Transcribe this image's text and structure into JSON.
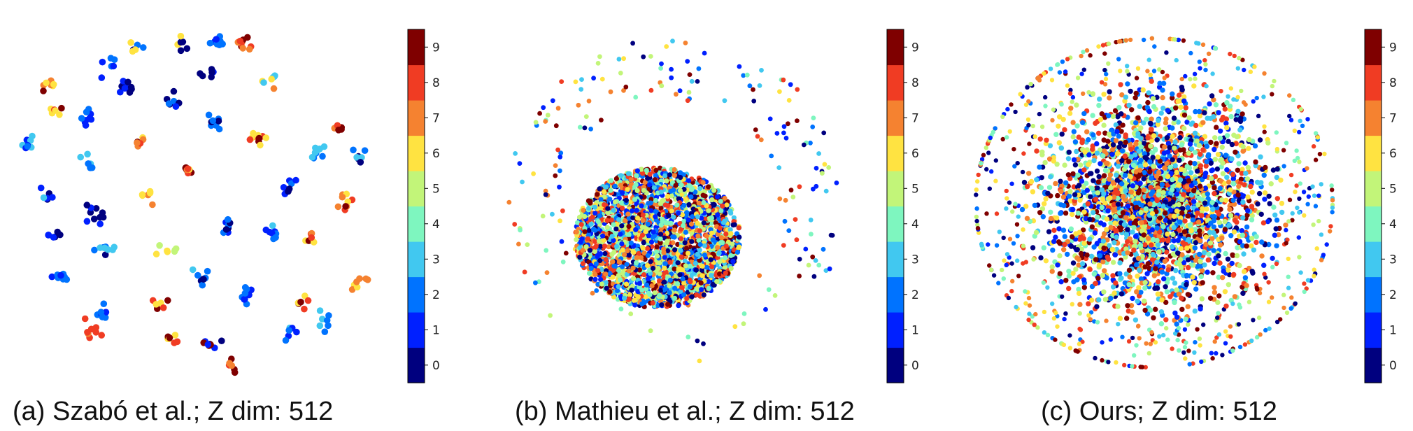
{
  "colormap": {
    "name": "jet",
    "class_colors": [
      "#00007f",
      "#0020ff",
      "#0073ff",
      "#41c8f0",
      "#7ef6bf",
      "#c2f579",
      "#ffe341",
      "#f58230",
      "#f03c23",
      "#7f0000"
    ]
  },
  "chart_data": [
    {
      "type": "scatter",
      "caption": "(a) Szabó et al.; Z dim: 512",
      "xlim": [
        -1,
        1
      ],
      "ylim": [
        -1,
        1
      ],
      "axes_visible": false,
      "colorbar": {
        "position": "right",
        "ticks": [
          0,
          1,
          2,
          3,
          4,
          5,
          6,
          7,
          8,
          9
        ]
      },
      "distribution": "clustered",
      "clusters": [
        {
          "x": -0.32,
          "y": 0.92,
          "classes": [
            0,
            6,
            2
          ]
        },
        {
          "x": -0.05,
          "y": 0.95,
          "classes": [
            8,
            6,
            0
          ]
        },
        {
          "x": 0.14,
          "y": 0.97,
          "classes": [
            1,
            2
          ]
        },
        {
          "x": 0.3,
          "y": 0.94,
          "classes": [
            7,
            8,
            9
          ]
        },
        {
          "x": -0.48,
          "y": 0.82,
          "classes": [
            1,
            2
          ]
        },
        {
          "x": -0.82,
          "y": 0.7,
          "classes": [
            6,
            7,
            9
          ]
        },
        {
          "x": -0.38,
          "y": 0.7,
          "classes": [
            0,
            1
          ]
        },
        {
          "x": 0.1,
          "y": 0.75,
          "classes": [
            0,
            1
          ]
        },
        {
          "x": 0.45,
          "y": 0.72,
          "classes": [
            7,
            6,
            3
          ]
        },
        {
          "x": -0.12,
          "y": 0.6,
          "classes": [
            2,
            0,
            1
          ]
        },
        {
          "x": -0.78,
          "y": 0.55,
          "classes": [
            6,
            8,
            9
          ]
        },
        {
          "x": -0.6,
          "y": 0.52,
          "classes": [
            1,
            2
          ]
        },
        {
          "x": 0.12,
          "y": 0.48,
          "classes": [
            2,
            0
          ]
        },
        {
          "x": 0.85,
          "y": 0.45,
          "classes": [
            7,
            8,
            9,
            0
          ]
        },
        {
          "x": -0.95,
          "y": 0.35,
          "classes": [
            1,
            2,
            3
          ]
        },
        {
          "x": -0.3,
          "y": 0.35,
          "classes": [
            6,
            8,
            7,
            9
          ]
        },
        {
          "x": 0.38,
          "y": 0.38,
          "classes": [
            6,
            8,
            9
          ]
        },
        {
          "x": 0.95,
          "y": 0.28,
          "classes": [
            2,
            3,
            0
          ]
        },
        {
          "x": 0.72,
          "y": 0.3,
          "classes": [
            2,
            3
          ]
        },
        {
          "x": -0.58,
          "y": 0.25,
          "classes": [
            3,
            2
          ]
        },
        {
          "x": -0.02,
          "y": 0.2,
          "classes": [
            6,
            7,
            8,
            9
          ]
        },
        {
          "x": -0.85,
          "y": 0.05,
          "classes": [
            0,
            1,
            2,
            3
          ]
        },
        {
          "x": -0.25,
          "y": 0.05,
          "classes": [
            7,
            6,
            8
          ]
        },
        {
          "x": 0.55,
          "y": 0.08,
          "classes": [
            1,
            2,
            0
          ]
        },
        {
          "x": 0.88,
          "y": 0.02,
          "classes": [
            6,
            7,
            8,
            9
          ]
        },
        {
          "x": -0.55,
          "y": -0.08,
          "classes": [
            0,
            1
          ]
        },
        {
          "x": 0.2,
          "y": -0.15,
          "classes": [
            0,
            1,
            2
          ]
        },
        {
          "x": 0.45,
          "y": -0.18,
          "classes": [
            1,
            2,
            3
          ]
        },
        {
          "x": -0.78,
          "y": -0.2,
          "classes": [
            1,
            0
          ]
        },
        {
          "x": -0.5,
          "y": -0.28,
          "classes": [
            0,
            2,
            3
          ]
        },
        {
          "x": -0.15,
          "y": -0.28,
          "classes": [
            7,
            6,
            5
          ]
        },
        {
          "x": 0.68,
          "y": -0.22,
          "classes": [
            6,
            7,
            8,
            9
          ]
        },
        {
          "x": -0.75,
          "y": -0.45,
          "classes": [
            1,
            2
          ]
        },
        {
          "x": 0.05,
          "y": -0.45,
          "classes": [
            2,
            3,
            0
          ]
        },
        {
          "x": 0.3,
          "y": -0.55,
          "classes": [
            2,
            1
          ]
        },
        {
          "x": 0.62,
          "y": -0.6,
          "classes": [
            9,
            8,
            6
          ]
        },
        {
          "x": 0.95,
          "y": -0.48,
          "classes": [
            6,
            7
          ]
        },
        {
          "x": -0.5,
          "y": -0.65,
          "classes": [
            1,
            2
          ]
        },
        {
          "x": -0.18,
          "y": -0.6,
          "classes": [
            9,
            6,
            8
          ]
        },
        {
          "x": -0.58,
          "y": -0.78,
          "classes": [
            7,
            8
          ]
        },
        {
          "x": -0.12,
          "y": -0.8,
          "classes": [
            6,
            8,
            9
          ]
        },
        {
          "x": 0.1,
          "y": -0.85,
          "classes": [
            0,
            1,
            9
          ]
        },
        {
          "x": 0.55,
          "y": -0.78,
          "classes": [
            0,
            1,
            2,
            3
          ]
        },
        {
          "x": 0.75,
          "y": -0.7,
          "classes": [
            2,
            3
          ]
        },
        {
          "x": 0.22,
          "y": -0.98,
          "classes": [
            7,
            8,
            9
          ]
        }
      ]
    },
    {
      "type": "scatter",
      "caption": "(b) Mathieu et al.; Z dim: 512",
      "xlim": [
        -1,
        1
      ],
      "ylim": [
        -1,
        1
      ],
      "axes_visible": false,
      "colorbar": {
        "position": "right",
        "ticks": [
          0,
          1,
          2,
          3,
          4,
          5,
          6,
          7,
          8,
          9
        ]
      },
      "distribution": "dense core with sparse outer ring",
      "classes": [
        0,
        1,
        2,
        3,
        4,
        5,
        6,
        7,
        8,
        9
      ]
    },
    {
      "type": "scatter",
      "caption": "(c) Ours; Z dim: 512",
      "xlim": [
        -1,
        1
      ],
      "ylim": [
        -1,
        1
      ],
      "axes_visible": false,
      "colorbar": {
        "position": "right",
        "ticks": [
          0,
          1,
          2,
          3,
          4,
          5,
          6,
          7,
          8,
          9
        ]
      },
      "distribution": "single dense disc",
      "classes": [
        0,
        1,
        2,
        3,
        4,
        5,
        6,
        7,
        8,
        9
      ]
    }
  ]
}
